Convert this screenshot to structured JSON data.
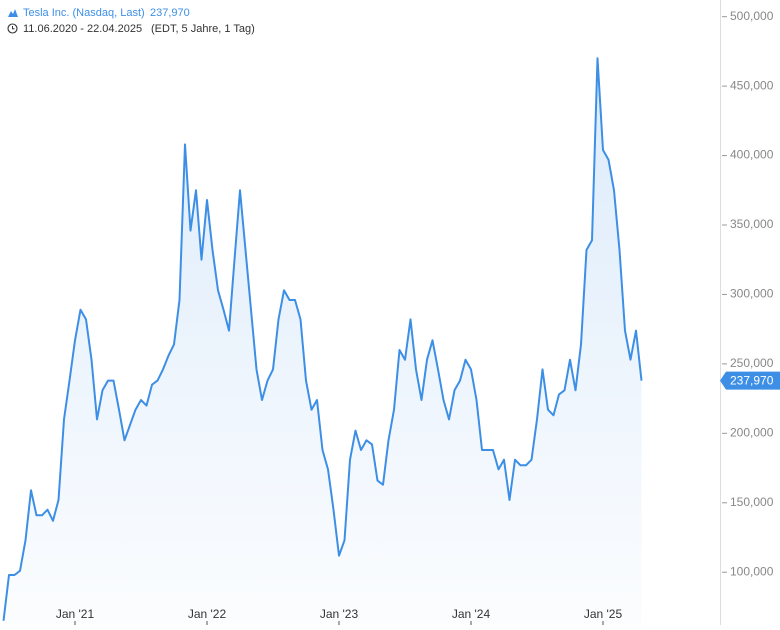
{
  "chart_data": {
    "type": "area",
    "date_range": "11.06.2020 - 22.04.2025",
    "subtitle": "(EDT, 5 Jahre, 1 Tag)",
    "last": {
      "value": 237970,
      "label": "237,970"
    },
    "categories": [
      null,
      null,
      null,
      null,
      null,
      null,
      null,
      null,
      null,
      null,
      null,
      null,
      null,
      "Jan '21",
      null,
      null,
      null,
      null,
      null,
      null,
      null,
      null,
      null,
      null,
      null,
      null,
      null,
      null,
      null,
      null,
      null,
      null,
      null,
      null,
      null,
      null,
      null,
      "Jan '22",
      null,
      null,
      null,
      null,
      null,
      null,
      null,
      null,
      null,
      null,
      null,
      null,
      null,
      null,
      null,
      null,
      null,
      null,
      null,
      null,
      null,
      null,
      null,
      "Jan '23",
      null,
      null,
      null,
      null,
      null,
      null,
      null,
      null,
      null,
      null,
      null,
      null,
      null,
      null,
      null,
      null,
      null,
      null,
      null,
      null,
      null,
      null,
      null,
      "Jan '24",
      null,
      null,
      null,
      null,
      null,
      null,
      null,
      null,
      null,
      null,
      null,
      null,
      null,
      null,
      null,
      null,
      null,
      null,
      null,
      null,
      null,
      null,
      null,
      "Jan '25",
      null,
      null,
      null,
      null,
      null,
      null,
      null
    ],
    "series": [
      {
        "name": "Tesla Inc. (Nasdaq, Last)",
        "color": "#3d8fe6",
        "values": [
          65000,
          98000,
          98000,
          101000,
          123000,
          159000,
          141000,
          141000,
          145000,
          137000,
          152000,
          210000,
          238000,
          267000,
          289000,
          282000,
          253000,
          210000,
          231000,
          238000,
          238000,
          217000,
          195000,
          206000,
          217000,
          224000,
          220000,
          235000,
          238000,
          246000,
          256000,
          264000,
          296000,
          408000,
          346000,
          375000,
          325000,
          368000,
          332000,
          303000,
          289000,
          274000,
          325000,
          375000,
          332000,
          289000,
          246000,
          224000,
          238000,
          246000,
          282000,
          303000,
          296000,
          296000,
          282000,
          238000,
          217000,
          224000,
          188000,
          174000,
          145000,
          112000,
          123000,
          181000,
          202000,
          188000,
          195000,
          192000,
          166000,
          163000,
          195000,
          217000,
          260000,
          253000,
          282000,
          246000,
          224000,
          253000,
          267000,
          246000,
          224000,
          210000,
          231000,
          238000,
          253000,
          246000,
          224000,
          188000,
          188000,
          188000,
          174000,
          181000,
          152000,
          181000,
          177000,
          177000,
          181000,
          210000,
          246000,
          217000,
          213000,
          228000,
          231000,
          253000,
          231000,
          264000,
          332000,
          339000,
          470000,
          404000,
          397000,
          375000,
          332000,
          274000,
          253000,
          274000,
          237970
        ]
      }
    ],
    "ylim": [
      62000,
      512000
    ],
    "yticks": [
      {
        "value": 100000,
        "label": "100,000"
      },
      {
        "value": 150000,
        "label": "150,000"
      },
      {
        "value": 200000,
        "label": "200,000"
      },
      {
        "value": 250000,
        "label": "250,000"
      },
      {
        "value": 300000,
        "label": "300,000"
      },
      {
        "value": 350000,
        "label": "350,000"
      },
      {
        "value": 400000,
        "label": "400,000"
      },
      {
        "value": 450000,
        "label": "450,000"
      },
      {
        "value": 500000,
        "label": "500,000"
      }
    ]
  }
}
